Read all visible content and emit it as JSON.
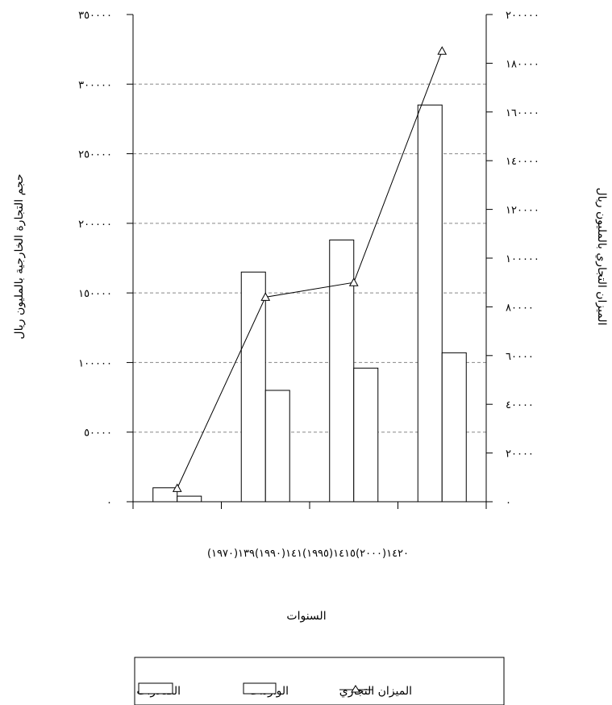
{
  "chart_data": {
    "type": "bar",
    "categories": [
      "١٣٩(١٩٧٠)",
      "١٤١(١٩٩٠)",
      "١٤١٥(١٩٩٥)",
      "١٤٢٠(٢٠٠٠)"
    ],
    "category_strip": "(١٩٧٠)١٣٩(١٩٩٠)١٤١(١٩٩٥)١٤١٥(٢٠٠٠)١٤٢٠",
    "series": [
      {
        "name": "الصادرات",
        "axis": "left",
        "kind": "bar",
        "values": [
          10000,
          165000,
          188000,
          285000
        ]
      },
      {
        "name": "الواردات",
        "axis": "left",
        "kind": "bar",
        "values": [
          4000,
          80000,
          96000,
          107000
        ]
      },
      {
        "name": "الميزان التجاري",
        "axis": "right",
        "kind": "line",
        "marker": "triangle",
        "values": [
          5500,
          84000,
          90000,
          185000
        ]
      }
    ],
    "ylabel": "حجم التجارة الخارجية بالمليون ريال",
    "ylabel_right": "الميزان التجاري بالمليون ريال",
    "xlabel": "السنوات",
    "ylim": [
      0,
      350000
    ],
    "ylim_right": [
      0,
      200000
    ],
    "yticks": [
      "٠",
      "٥٠٠٠٠",
      "١٠٠٠٠٠",
      "١٥٠٠٠٠",
      "٢٠٠٠٠٠",
      "٢٥٠٠٠٠",
      "٣٠٠٠٠٠",
      "٣٥٠٠٠٠"
    ],
    "yticks_right": [
      "٠",
      "٢٠٠٠٠",
      "٤٠٠٠٠",
      "٦٠٠٠٠",
      "٨٠٠٠٠",
      "١٠٠٠٠٠",
      "١٢٠٠٠٠",
      "١٤٠٠٠٠",
      "١٦٠٠٠٠",
      "١٨٠٠٠٠",
      "٢٠٠٠٠٠"
    ],
    "grid": "horizontal dashed",
    "legend_position": "bottom",
    "colors": {
      "bar_fill": "#ffffff",
      "stroke": "#000000",
      "grid": "#888888"
    }
  }
}
